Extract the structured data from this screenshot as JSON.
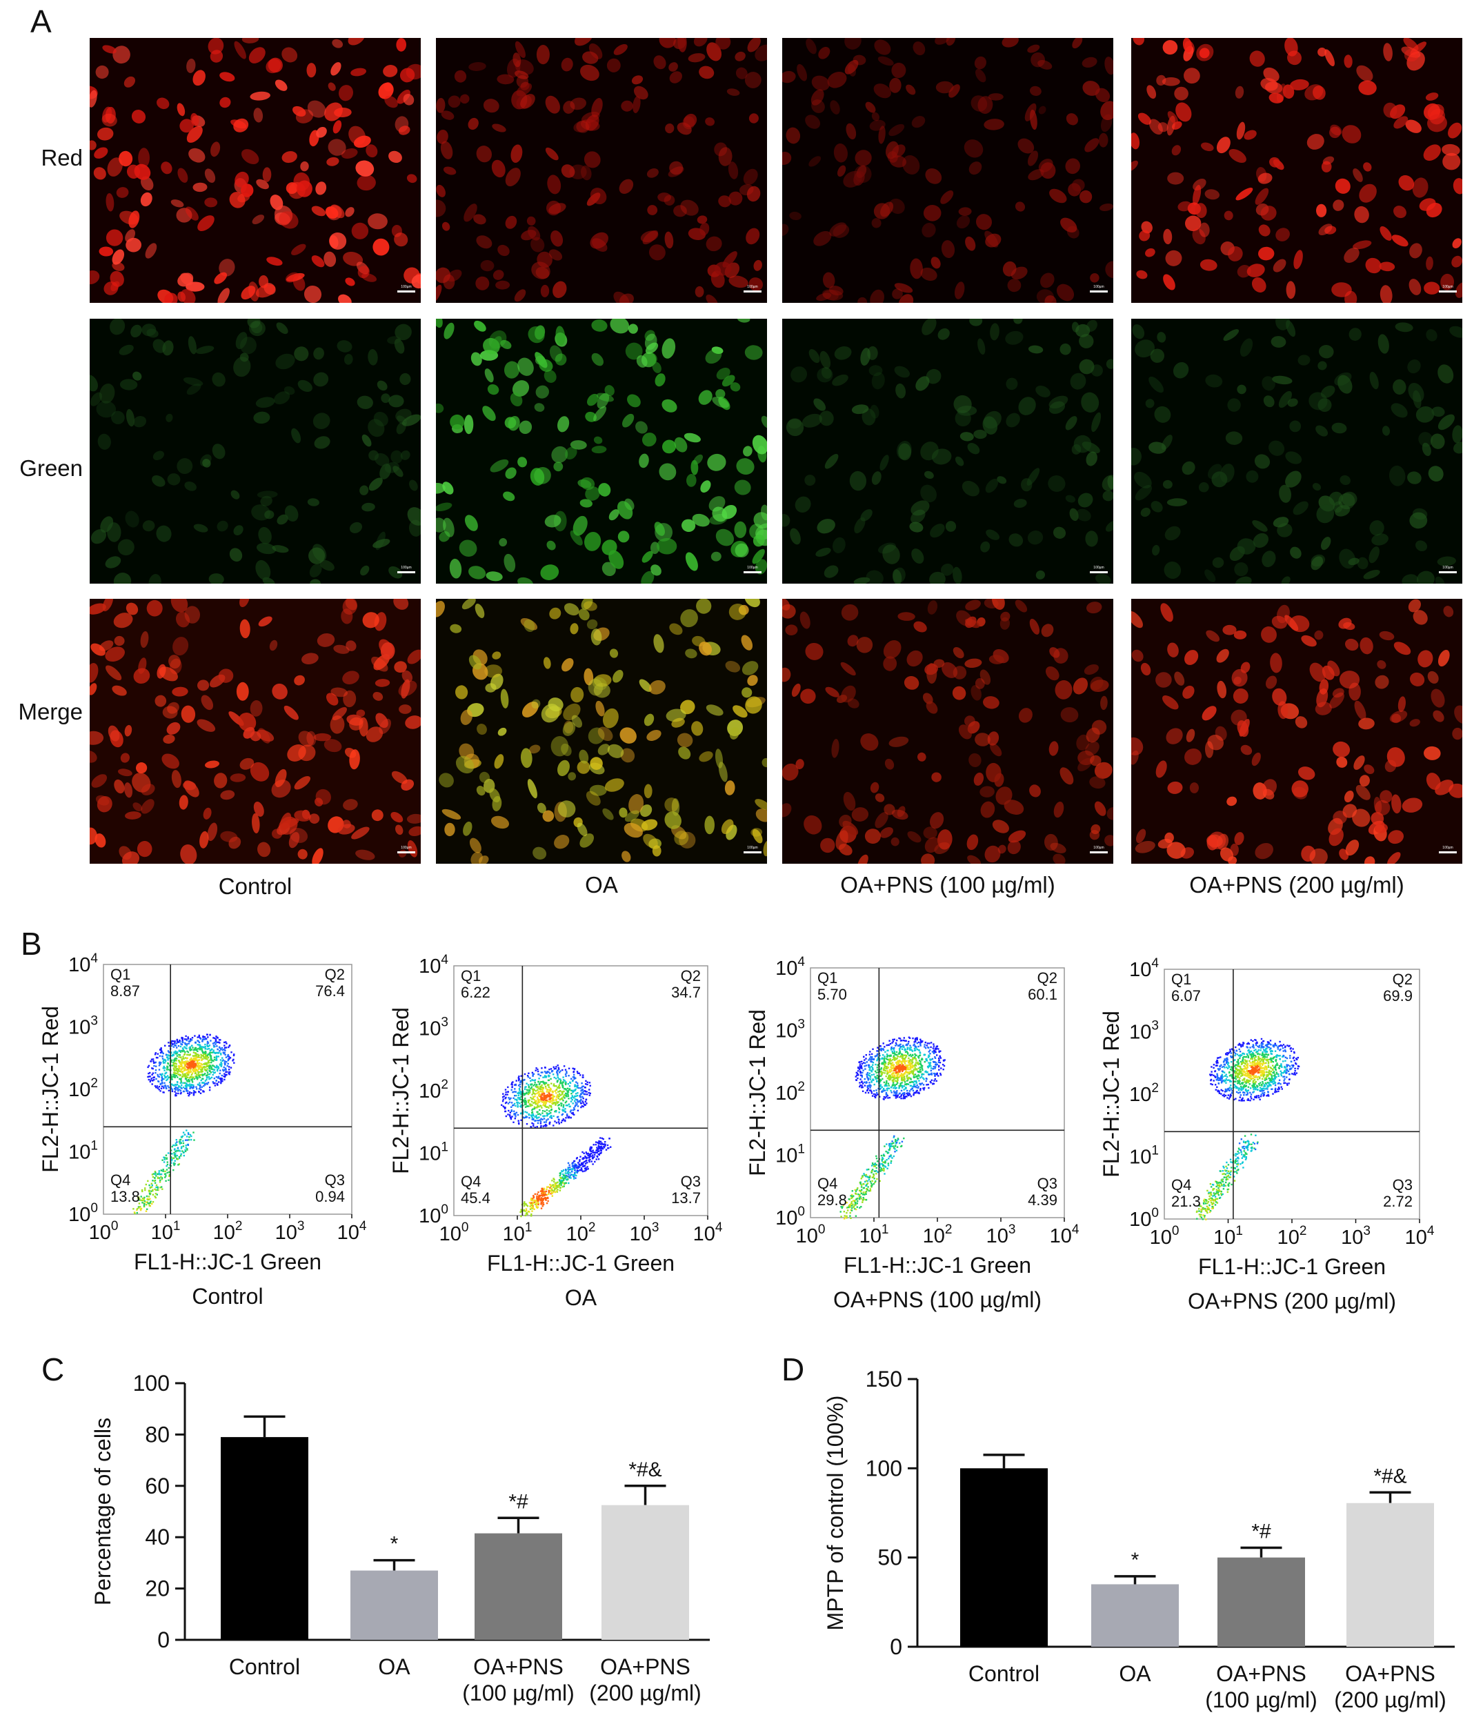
{
  "figure": {
    "panel_letters": {
      "A": "A",
      "B": "B",
      "C": "C",
      "D": "D"
    },
    "groups": [
      "Control",
      "OA",
      "OA+PNS (100 µg/ml)",
      "OA+PNS (200 µg/ml)"
    ],
    "channels": [
      "Red",
      "Green",
      "Merge"
    ],
    "micrographs": [
      [
        "red-bright",
        "red-dim",
        "red-dim2",
        "red-bright2"
      ],
      [
        "green-dim",
        "green-bright",
        "green-dim",
        "green-dim"
      ],
      [
        "merge-red",
        "merge-yellow",
        "merge-red-dim",
        "merge-red2"
      ]
    ],
    "scale_bar_label": "100µm"
  },
  "flow": {
    "xlabel": "FL1-H::JC-1 Green",
    "ylabel": "FL2-H::JC-1 Red",
    "ticks": [
      "0",
      "1",
      "2",
      "3",
      "4"
    ],
    "tick_base": "10",
    "plots": [
      {
        "group": "Control",
        "q1": "8.87",
        "q2": "76.4",
        "q3": "0.94",
        "q4": "13.8"
      },
      {
        "group": "OA",
        "q1": "6.22",
        "q2": "34.7",
        "q3": "13.7",
        "q4": "45.4"
      },
      {
        "group": "OA+PNS (100 µg/ml)",
        "q1": "5.70",
        "q2": "60.1",
        "q3": "4.39",
        "q4": "29.8"
      },
      {
        "group": "OA+PNS (200 µg/ml)",
        "q1": "6.07",
        "q2": "69.9",
        "q3": "2.72",
        "q4": "21.3"
      }
    ],
    "quadrant_names": [
      "Q1",
      "Q2",
      "Q3",
      "Q4"
    ]
  },
  "chart_data": [
    {
      "type": "bar",
      "panel": "C",
      "categories": [
        [
          "Control"
        ],
        [
          "OA"
        ],
        [
          "OA+PNS",
          "(100 µg/ml)"
        ],
        [
          "OA+PNS",
          "(200 µg/ml)"
        ]
      ],
      "values": [
        79,
        27,
        41.5,
        52.5
      ],
      "errors": [
        8,
        4,
        6,
        7.5
      ],
      "annotations": [
        "",
        "*",
        "*#",
        "*#&"
      ],
      "colors": [
        "#000000",
        "#a7a9b3",
        "#7a7a7a",
        "#d9d9d9"
      ],
      "xlabel": "",
      "ylabel": "Percentage of cells",
      "ylim": [
        0,
        100
      ],
      "yticks": [
        0,
        20,
        40,
        60,
        80,
        100
      ]
    },
    {
      "type": "bar",
      "panel": "D",
      "categories": [
        [
          "Control"
        ],
        [
          "OA"
        ],
        [
          "OA+PNS",
          "(100 µg/ml)"
        ],
        [
          "OA+PNS",
          "(200 µg/ml)"
        ]
      ],
      "values": [
        100,
        35,
        50,
        80.5
      ],
      "errors": [
        7.5,
        4.5,
        5.5,
        6
      ],
      "annotations": [
        "",
        "*",
        "*#",
        "*#&"
      ],
      "colors": [
        "#000000",
        "#a7a9b3",
        "#7a7a7a",
        "#d9d9d9"
      ],
      "xlabel": "",
      "ylabel": "MPTP of control (100%)",
      "ylim": [
        0,
        150
      ],
      "yticks": [
        0,
        50,
        100,
        150
      ]
    }
  ]
}
